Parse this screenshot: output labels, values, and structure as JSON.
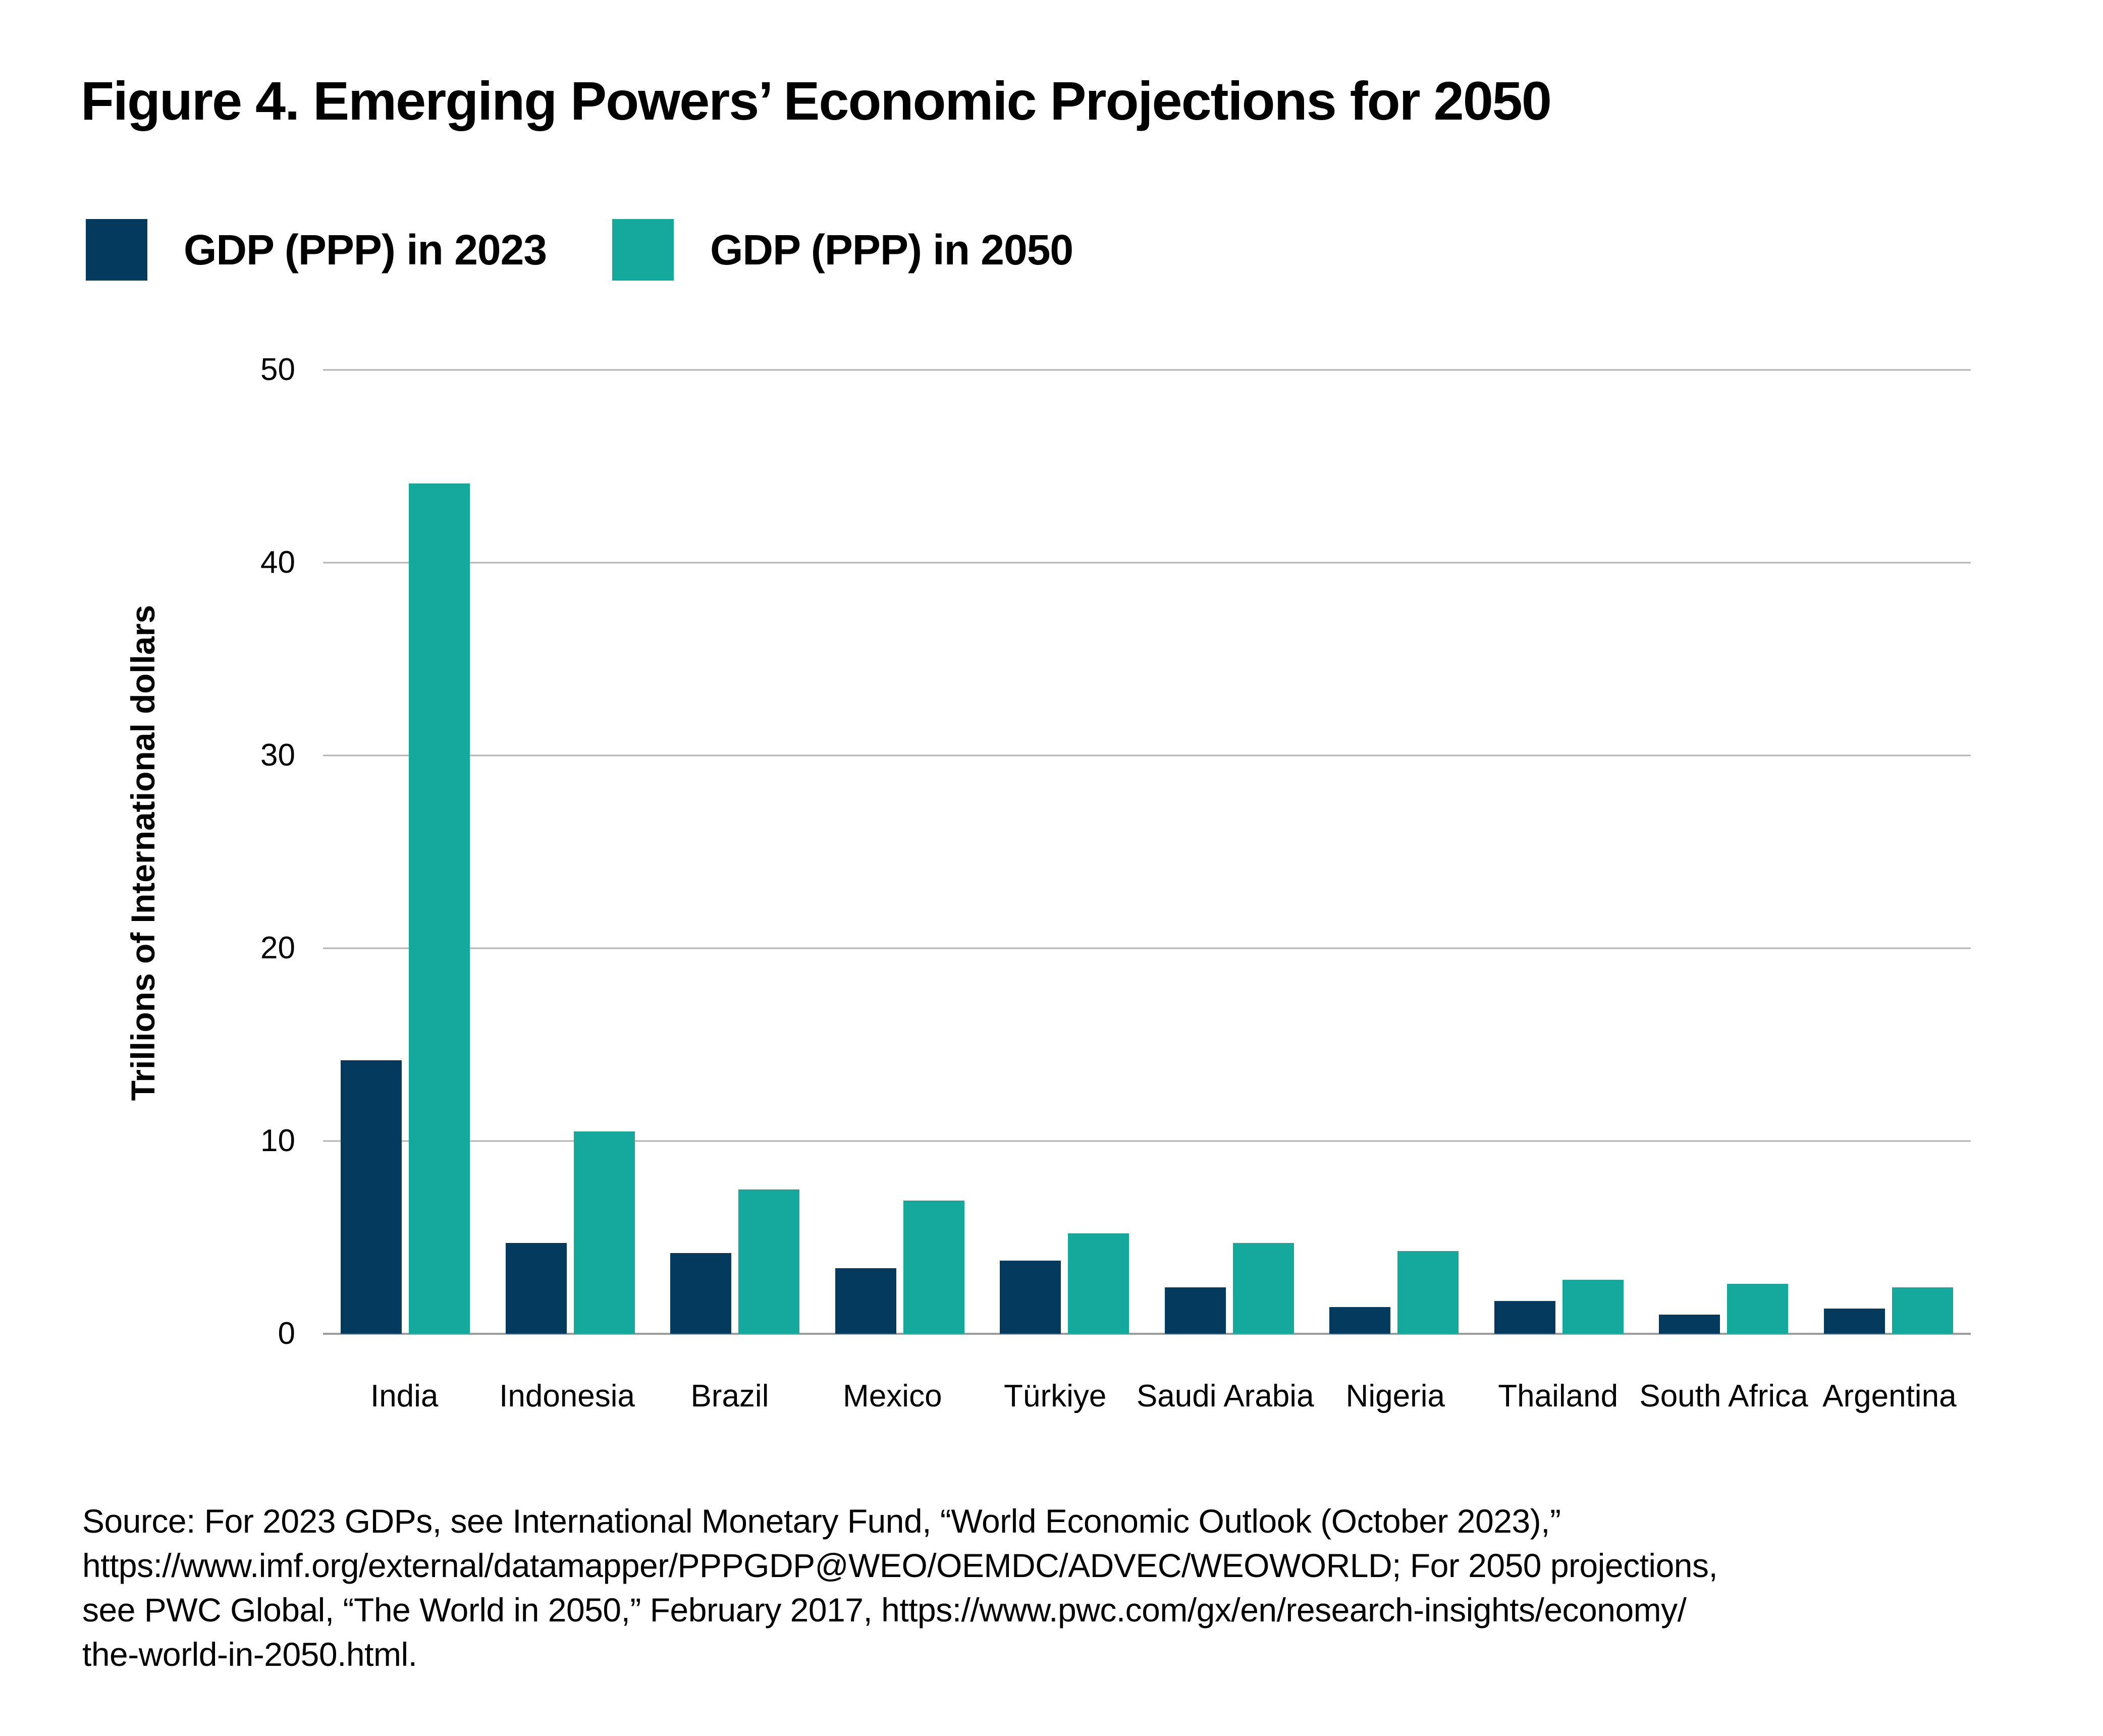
{
  "title": "Figure 4. Emerging Powers’ Economic Projections for 2050",
  "chart_data": {
    "type": "bar",
    "title": "Figure 4. Emerging Powers’ Economic Projections for 2050",
    "categories": [
      "India",
      "Indonesia",
      "Brazil",
      "Mexico",
      "Türkiye",
      "Saudi Arabia",
      "Nigeria",
      "Thailand",
      "South Africa",
      "Argentina"
    ],
    "series": [
      {
        "name": "GDP (PPP) in 2023",
        "color": "#053A5F",
        "values": [
          14.2,
          4.7,
          4.2,
          3.4,
          3.8,
          2.4,
          1.4,
          1.7,
          1.0,
          1.3
        ]
      },
      {
        "name": "GDP (PPP) in 2050",
        "color": "#15A99E",
        "values": [
          44.1,
          10.5,
          7.5,
          6.9,
          5.2,
          4.7,
          4.3,
          2.8,
          2.6,
          2.4
        ]
      }
    ],
    "xlabel": "",
    "ylabel": "Trillions of International dollars",
    "ylim": [
      0,
      50
    ],
    "yticks": [
      0,
      10,
      20,
      30,
      40,
      50
    ],
    "grid": "horizontal",
    "legend_position": "top-left",
    "gridline_color": "#b3b3b3",
    "baseline_color": "#9c9c9c"
  },
  "source": {
    "lines": [
      "Source: For 2023 GDPs, see International Monetary Fund, “World Economic Outlook (October 2023),”",
      "https://www.imf.org/external/datamapper/PPPGDP@WEO/OEMDC/ADVEC/WEOWORLD; For 2050 projections,",
      "see PWC Global, “The World in 2050,” February 2017, https://www.pwc.com/gx/en/research-insights/economy/",
      "the-world-in-2050.html."
    ]
  }
}
